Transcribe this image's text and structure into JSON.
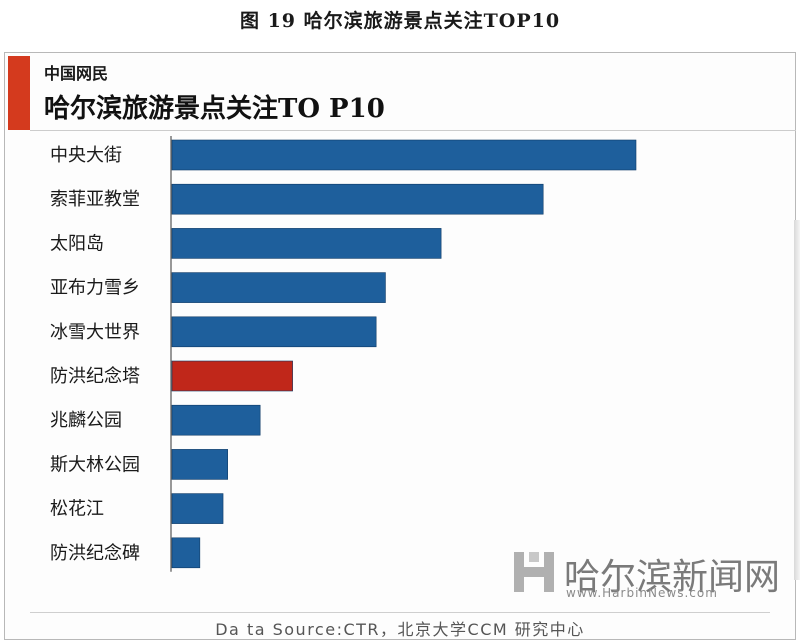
{
  "figure_title": "图 19 哈尔滨旅游景点关注TOP10",
  "header": {
    "subtitle": "中国网民",
    "title": "哈尔滨旅游景点关注TO P10"
  },
  "colors": {
    "bar": "#1e5f9c",
    "highlight": "#c0271a",
    "accent": "#d43a1e"
  },
  "chart_data": {
    "type": "bar",
    "orientation": "horizontal",
    "title": "哈尔滨旅游景点关注TO P10",
    "categories": [
      "中央大街",
      "索菲亚教堂",
      "太阳岛",
      "亚布力雪乡",
      "冰雪大世界",
      "防洪纪念塔",
      "兆麟公园",
      "斯大林公园",
      "松花江",
      "防洪纪念碑"
    ],
    "values": [
      100,
      80,
      58,
      46,
      44,
      26,
      19,
      12,
      11,
      6
    ],
    "highlight_index": 5,
    "grid": false,
    "legend": "none",
    "value_axis": "not shown"
  },
  "source": "Da ta Source:CTR，北京大学CCM 研究中心",
  "watermark": {
    "name": "哈尔滨新闻网",
    "url": "www.HarbinNews.com"
  }
}
